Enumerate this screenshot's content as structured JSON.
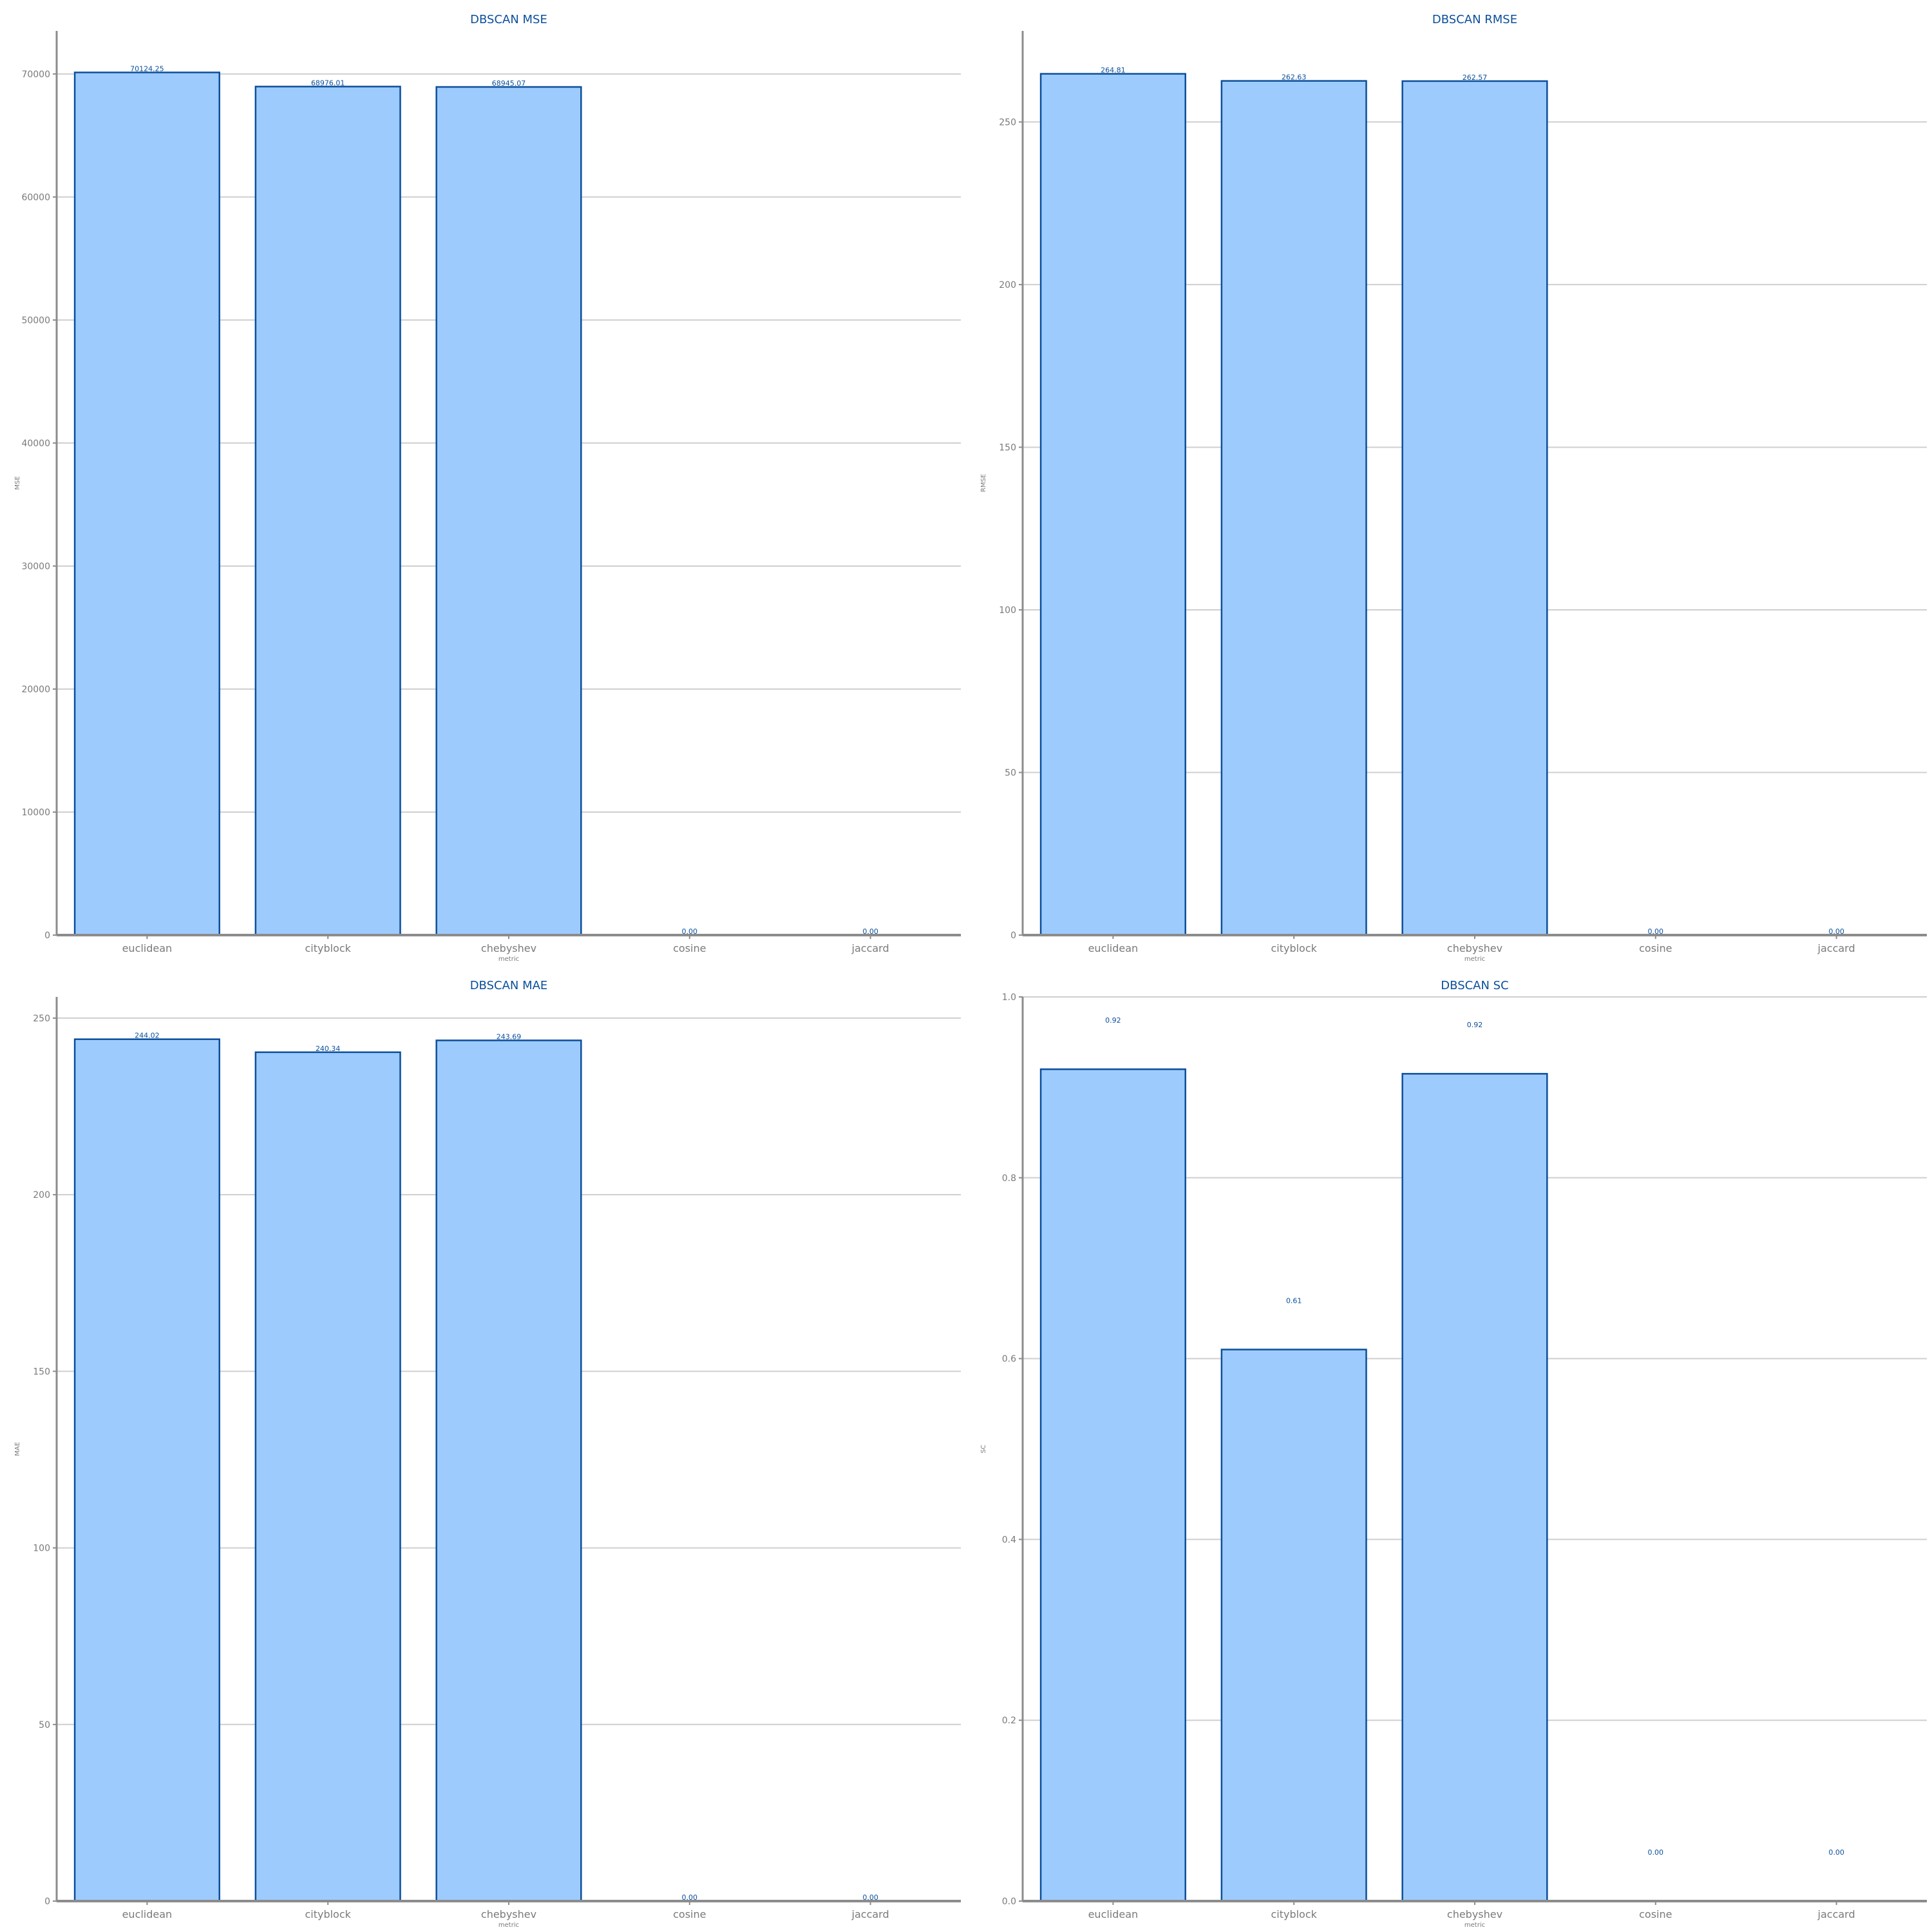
{
  "chart_data": [
    {
      "type": "bar",
      "title": "DBSCAN MSE",
      "xlabel": "metric",
      "ylabel": "MSE",
      "categories": [
        "euclidean",
        "cityblock",
        "chebyshev",
        "cosine",
        "jaccard"
      ],
      "values": [
        70124.25,
        68976.01,
        68945.07,
        0.0,
        0.0
      ],
      "value_labels": [
        "70124.25",
        "68976.01",
        "68945.07",
        "0.00",
        "0.00"
      ],
      "ylim": [
        0,
        73500
      ],
      "yticks": [
        0,
        10000,
        20000,
        30000,
        40000,
        50000,
        60000,
        70000
      ],
      "ytick_labels": [
        "0",
        "10000",
        "20000",
        "30000",
        "40000",
        "50000",
        "60000",
        "70000"
      ],
      "grid": true,
      "colors": {
        "bar_fill": "#9ecbfd",
        "bar_edge": "#0b4f9c",
        "title": "#0b4f9c",
        "value_label": "#0b4f9c"
      }
    },
    {
      "type": "bar",
      "title": "DBSCAN RMSE",
      "xlabel": "metric",
      "ylabel": "RMSE",
      "categories": [
        "euclidean",
        "cityblock",
        "chebyshev",
        "cosine",
        "jaccard"
      ],
      "values": [
        264.81,
        262.63,
        262.57,
        0.0,
        0.0
      ],
      "value_labels": [
        "264.81",
        "262.63",
        "262.57",
        "0.00",
        "0.00"
      ],
      "ylim": [
        0,
        278
      ],
      "yticks": [
        0,
        50,
        100,
        150,
        200,
        250
      ],
      "ytick_labels": [
        "0",
        "50",
        "100",
        "150",
        "200",
        "250"
      ],
      "grid": true,
      "colors": {
        "bar_fill": "#9ecbfd",
        "bar_edge": "#0b4f9c",
        "title": "#0b4f9c",
        "value_label": "#0b4f9c"
      }
    },
    {
      "type": "bar",
      "title": "DBSCAN MAE",
      "xlabel": "metric",
      "ylabel": "MAE",
      "categories": [
        "euclidean",
        "cityblock",
        "chebyshev",
        "cosine",
        "jaccard"
      ],
      "values": [
        244.02,
        240.34,
        243.69,
        0.0,
        0.0
      ],
      "value_labels": [
        "244.02",
        "240.34",
        "243.69",
        "0.00",
        "0.00"
      ],
      "ylim": [
        0,
        256
      ],
      "yticks": [
        0,
        50,
        100,
        150,
        200,
        250
      ],
      "ytick_labels": [
        "0",
        "50",
        "100",
        "150",
        "200",
        "250"
      ],
      "grid": true,
      "colors": {
        "bar_fill": "#9ecbfd",
        "bar_edge": "#0b4f9c",
        "title": "#0b4f9c",
        "value_label": "#0b4f9c"
      }
    },
    {
      "type": "bar",
      "title": "DBSCAN SC",
      "xlabel": "metric",
      "ylabel": "SC",
      "categories": [
        "euclidean",
        "cityblock",
        "chebyshev",
        "cosine",
        "jaccard"
      ],
      "values": [
        0.92,
        0.61,
        0.915,
        0.0,
        0.0
      ],
      "value_labels": [
        "0.92",
        "0.61",
        "0.92",
        "0.00",
        "0.00"
      ],
      "ylim": [
        0,
        1.0
      ],
      "yticks": [
        0.0,
        0.2,
        0.4,
        0.6,
        0.8,
        1.0
      ],
      "ytick_labels": [
        "0.0",
        "0.2",
        "0.4",
        "0.6",
        "0.8",
        "1.0"
      ],
      "value_label_offset": 0.05,
      "grid": true,
      "colors": {
        "bar_fill": "#9ecbfd",
        "bar_edge": "#0b4f9c",
        "title": "#0b4f9c",
        "value_label": "#0b4f9c"
      }
    }
  ]
}
